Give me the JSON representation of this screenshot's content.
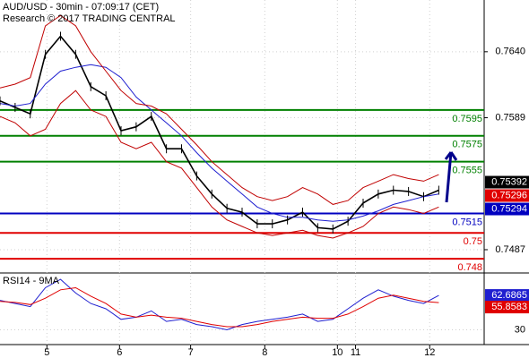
{
  "chart_data": {
    "type": "price",
    "title": "AUD/USD - 30min - 07:09:17 (CET)",
    "subtitle": "Research © 2017 TRADING CENTRAL",
    "x": [
      0,
      10,
      20,
      30,
      40,
      50,
      60,
      70,
      80,
      90,
      100,
      110,
      120,
      130,
      140,
      150,
      160,
      170,
      180,
      190,
      200,
      210,
      220,
      230,
      240,
      250,
      260,
      270,
      280,
      290
    ],
    "xlim": [
      0,
      320
    ],
    "xticks": [
      {
        "value": 31,
        "label": "5"
      },
      {
        "value": 79,
        "label": "6"
      },
      {
        "value": 126,
        "label": "7"
      },
      {
        "value": 175,
        "label": "8"
      },
      {
        "value": 223,
        "label": "10"
      },
      {
        "value": 235,
        "label": "11"
      },
      {
        "value": 284,
        "label": "12"
      }
    ],
    "ylim": [
      0.7469,
      0.768
    ],
    "yticks": [
      {
        "value": 0.764,
        "label": "0.7640"
      },
      0.7589,
      0.7487
    ],
    "series": [
      {
        "name": "price",
        "color": "#000000",
        "values": [
          0.7602,
          0.7597,
          0.7592,
          0.7638,
          0.7652,
          0.7638,
          0.7613,
          0.7606,
          0.7579,
          0.7582,
          0.759,
          0.7565,
          0.7565,
          0.7544,
          0.753,
          0.7519,
          0.7516,
          0.7507,
          0.7507,
          0.751,
          0.7516,
          0.7504,
          0.7503,
          0.7509,
          0.7523,
          0.753,
          0.7533,
          0.7532,
          0.7528,
          0.7533
        ]
      },
      {
        "name": "ma",
        "color": "#1f1fd0",
        "values": [
          0.76,
          0.7598,
          0.76,
          0.7615,
          0.7625,
          0.7628,
          0.763,
          0.7628,
          0.762,
          0.7605,
          0.7595,
          0.7585,
          0.7575,
          0.7562,
          0.755,
          0.754,
          0.753,
          0.752,
          0.7515,
          0.7512,
          0.7512,
          0.751,
          0.7509,
          0.751,
          0.7513,
          0.7517,
          0.7522,
          0.7525,
          0.7528,
          0.753
        ]
      },
      {
        "name": "upper",
        "color": "#c00000",
        "values": [
          0.7612,
          0.7615,
          0.762,
          0.766,
          0.7668,
          0.766,
          0.764,
          0.7625,
          0.761,
          0.76,
          0.7598,
          0.7592,
          0.758,
          0.7568,
          0.7555,
          0.7545,
          0.7535,
          0.7528,
          0.7525,
          0.7528,
          0.7535,
          0.753,
          0.7522,
          0.7525,
          0.7535,
          0.754,
          0.7545,
          0.7542,
          0.754,
          0.7545
        ]
      },
      {
        "name": "lower",
        "color": "#c00000",
        "values": [
          0.759,
          0.7585,
          0.7575,
          0.758,
          0.76,
          0.761,
          0.7595,
          0.759,
          0.757,
          0.7565,
          0.757,
          0.7555,
          0.755,
          0.7535,
          0.752,
          0.751,
          0.7505,
          0.75,
          0.7498,
          0.75,
          0.7502,
          0.7498,
          0.7496,
          0.75,
          0.7505,
          0.7515,
          0.752,
          0.7518,
          0.7515,
          0.752
        ]
      }
    ],
    "levels": [
      {
        "value": 0.7595,
        "label": "0.7595",
        "color": "#008000"
      },
      {
        "value": 0.7575,
        "label": "0.7575",
        "color": "#008000"
      },
      {
        "value": 0.7555,
        "label": "0.7555",
        "color": "#008000"
      },
      {
        "value": 0.7515,
        "label": "0.7515",
        "color": "#0000c0"
      },
      {
        "value": 0.75,
        "label": "0.75",
        "color": "#e00000"
      },
      {
        "value": 0.748,
        "label": "0.748",
        "color": "#e00000"
      }
    ],
    "price_labels": [
      {
        "value": 0.75392,
        "label": "0.75392",
        "color": "#000000"
      },
      {
        "value": 0.75296,
        "label": "0.75296",
        "color": "#e00000"
      },
      {
        "value": 0.75294,
        "label": "0.75294",
        "color": "#0000c0"
      }
    ],
    "rsi": {
      "title": "RSI14 - 9MA",
      "ylim": [
        16,
        84
      ],
      "yticks": [
        30
      ],
      "series": [
        {
          "name": "RSI14",
          "color": "#1f1fd0",
          "values": [
            58,
            55,
            52,
            70,
            78,
            65,
            55,
            50,
            40,
            42,
            48,
            38,
            40,
            35,
            33,
            30,
            35,
            38,
            40,
            42,
            45,
            38,
            40,
            50,
            60,
            68,
            62,
            58,
            55,
            62.6865
          ]
        },
        {
          "name": "9MA",
          "color": "#e00000",
          "values": [
            57,
            56,
            54,
            60,
            68,
            70,
            62,
            55,
            45,
            42,
            44,
            42,
            41,
            38,
            35,
            33,
            33,
            35,
            38,
            40,
            42,
            41,
            41,
            45,
            52,
            60,
            63,
            60,
            57,
            55.8583
          ]
        }
      ],
      "value_labels": [
        "62.6865",
        "55.8583"
      ]
    }
  }
}
